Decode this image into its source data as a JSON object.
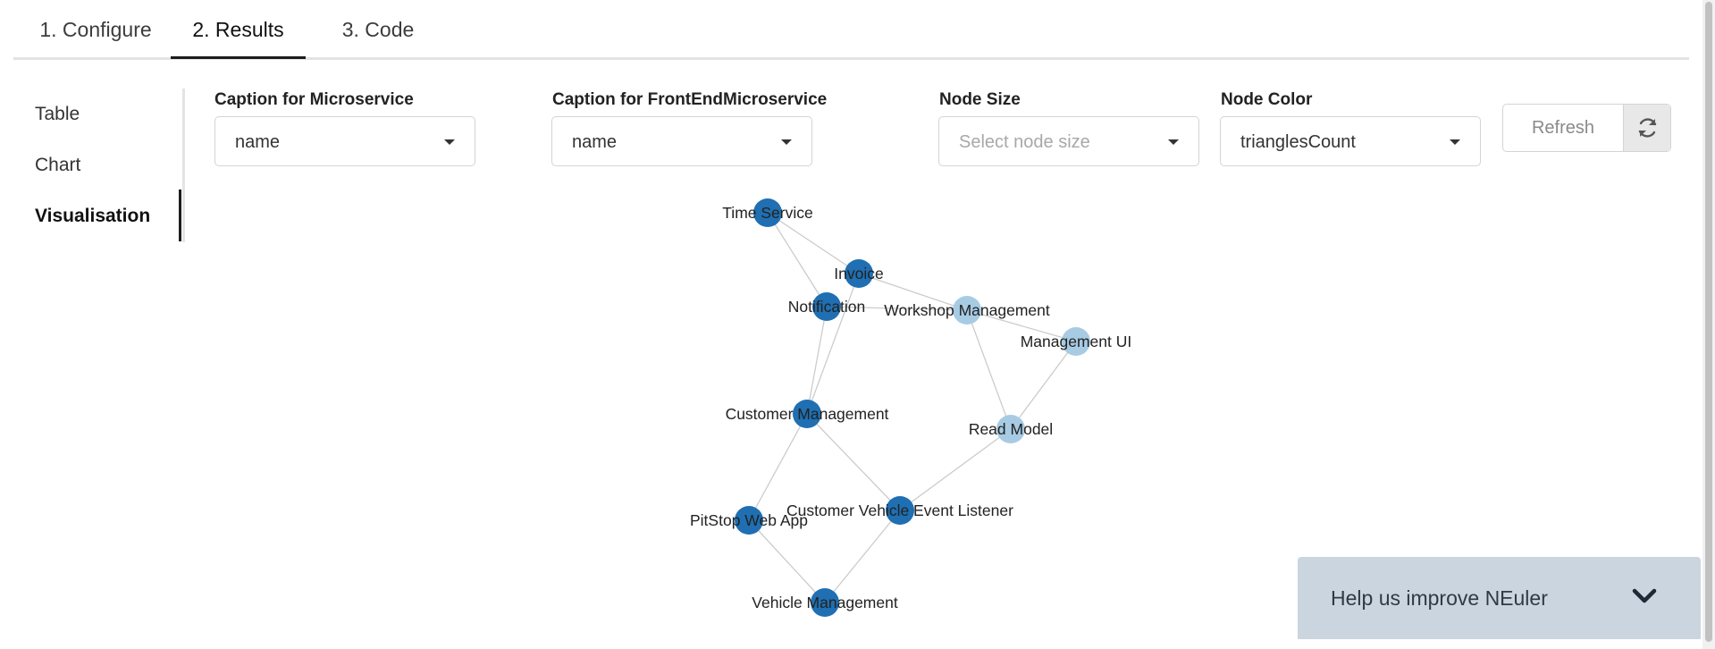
{
  "tabs": [
    {
      "label": "1. Configure",
      "active": false
    },
    {
      "label": "2. Results",
      "active": true
    },
    {
      "label": "3. Code",
      "active": false
    }
  ],
  "side_menu": [
    {
      "label": "Table",
      "active": false
    },
    {
      "label": "Chart",
      "active": false
    },
    {
      "label": "Visualisation",
      "active": true
    }
  ],
  "form": {
    "caption_microservice": {
      "label": "Caption for Microservice",
      "value": "name"
    },
    "caption_frontend": {
      "label": "Caption for FrontEndMicroservice",
      "value": "name"
    },
    "node_size": {
      "label": "Node Size",
      "placeholder": "Select node size"
    },
    "node_color": {
      "label": "Node Color",
      "value": "trianglesCount"
    },
    "refresh_label": "Refresh"
  },
  "graph": {
    "colors": {
      "dark": "#1f6fb2",
      "light": "#a7cbe3",
      "edge": "#cccccc"
    },
    "nodes": [
      {
        "id": "time",
        "label": "Time Service",
        "shade": "dark"
      },
      {
        "id": "invoice",
        "label": "Invoice",
        "shade": "dark"
      },
      {
        "id": "notification",
        "label": "Notification",
        "shade": "dark"
      },
      {
        "id": "workshop",
        "label": "Workshop Management",
        "shade": "light"
      },
      {
        "id": "mgmtui",
        "label": "Management UI",
        "shade": "light"
      },
      {
        "id": "customer",
        "label": "Customer Management",
        "shade": "dark"
      },
      {
        "id": "readmodel",
        "label": "Read Model",
        "shade": "light"
      },
      {
        "id": "cvel",
        "label": "Customer Vehicle Event Listener",
        "shade": "dark"
      },
      {
        "id": "pitstop",
        "label": "PitStop Web App",
        "shade": "dark"
      },
      {
        "id": "vehicle",
        "label": "Vehicle Management",
        "shade": "dark"
      }
    ],
    "edges": [
      [
        "time",
        "invoice"
      ],
      [
        "time",
        "notification"
      ],
      [
        "invoice",
        "workshop"
      ],
      [
        "invoice",
        "customer"
      ],
      [
        "notification",
        "workshop"
      ],
      [
        "notification",
        "customer"
      ],
      [
        "workshop",
        "mgmtui"
      ],
      [
        "workshop",
        "readmodel"
      ],
      [
        "mgmtui",
        "readmodel"
      ],
      [
        "readmodel",
        "cvel"
      ],
      [
        "customer",
        "pitstop"
      ],
      [
        "customer",
        "cvel"
      ],
      [
        "pitstop",
        "vehicle"
      ],
      [
        "cvel",
        "vehicle"
      ]
    ]
  },
  "feedback": {
    "text": "Help us improve NEuler"
  }
}
